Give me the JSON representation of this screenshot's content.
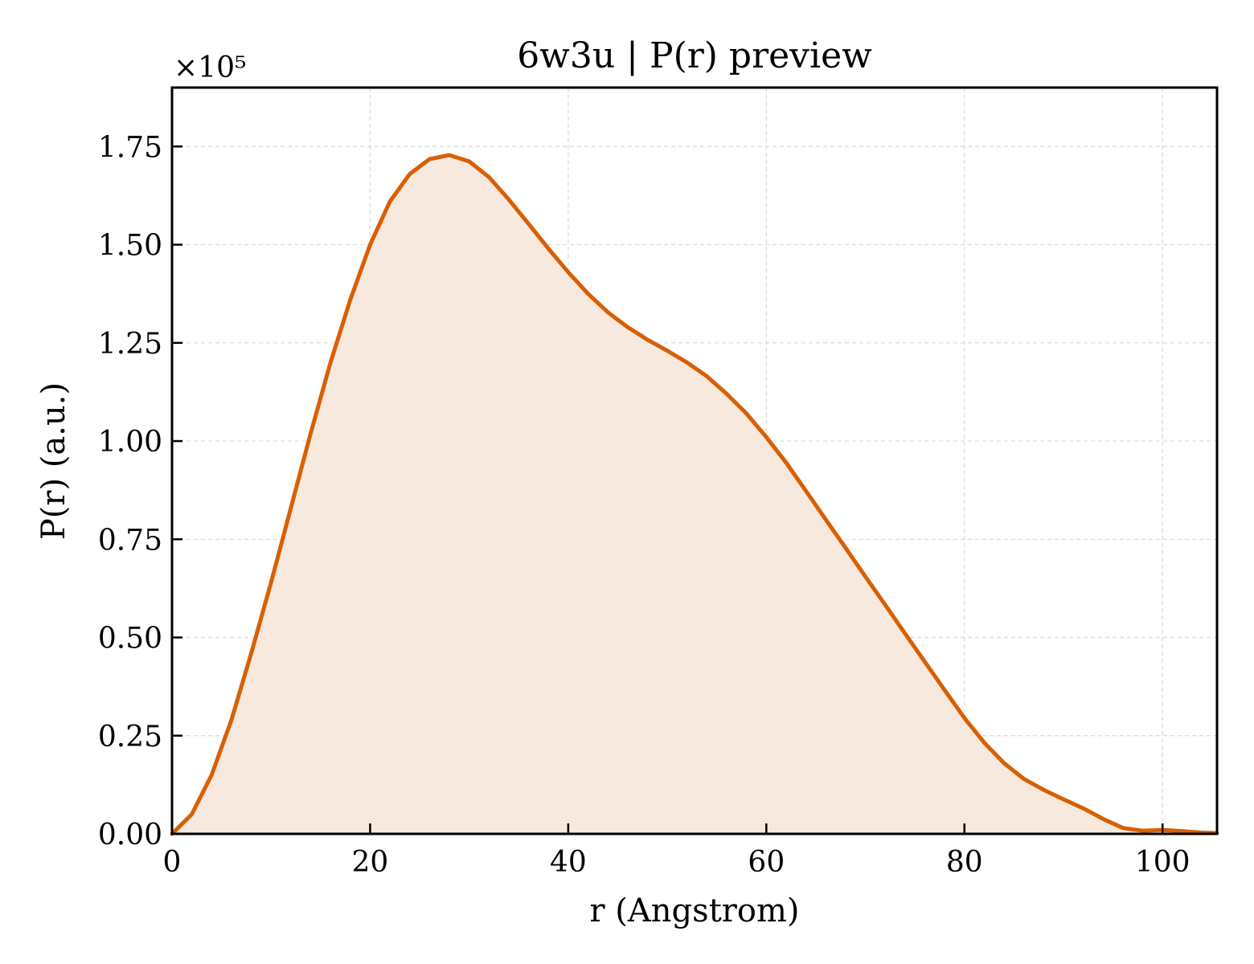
{
  "chart_data": {
    "type": "area",
    "title": "6w3u | P(r) preview",
    "xlabel": "r (Angstrom)",
    "ylabel": "P(r) (a.u.)",
    "y_multiplier_label": "×10⁵",
    "xlim": [
      0,
      105.5
    ],
    "ylim": [
      0,
      1.9
    ],
    "x_ticks": [
      0,
      20,
      40,
      60,
      80,
      100
    ],
    "x_tick_labels": [
      "0",
      "20",
      "40",
      "60",
      "80",
      "100"
    ],
    "y_ticks": [
      0,
      0.25,
      0.5,
      0.75,
      1.0,
      1.25,
      1.5,
      1.75
    ],
    "y_tick_labels": [
      "0.00",
      "0.25",
      "0.50",
      "0.75",
      "1.00",
      "1.25",
      "1.50",
      "1.75"
    ],
    "grid": true,
    "colors": {
      "line": "#d95f02",
      "fill": "#f8e9df",
      "grid": "#d9d9d9"
    },
    "series": [
      {
        "x": [
          0,
          2,
          4,
          6,
          8,
          10,
          12,
          14,
          16,
          18,
          20,
          22,
          24,
          26,
          28,
          30,
          32,
          34,
          36,
          38,
          40,
          42,
          44,
          46,
          48,
          50,
          52,
          54,
          56,
          58,
          60,
          62,
          64,
          66,
          68,
          70,
          72,
          74,
          76,
          78,
          80,
          82,
          84,
          86,
          88,
          90,
          92,
          94,
          96,
          98,
          100,
          102,
          104,
          105.5
        ],
        "y": [
          0,
          0.05,
          0.15,
          0.29,
          0.46,
          0.64,
          0.83,
          1.02,
          1.2,
          1.36,
          1.5,
          1.61,
          1.68,
          1.718,
          1.728,
          1.712,
          1.672,
          1.615,
          1.553,
          1.49,
          1.43,
          1.375,
          1.328,
          1.29,
          1.258,
          1.23,
          1.2,
          1.165,
          1.12,
          1.07,
          1.01,
          0.945,
          0.873,
          0.8,
          0.728,
          0.655,
          0.583,
          0.51,
          0.438,
          0.366,
          0.295,
          0.232,
          0.18,
          0.14,
          0.112,
          0.088,
          0.065,
          0.038,
          0.015,
          0.008,
          0.01,
          0.007,
          0.003,
          0.002
        ]
      }
    ]
  }
}
